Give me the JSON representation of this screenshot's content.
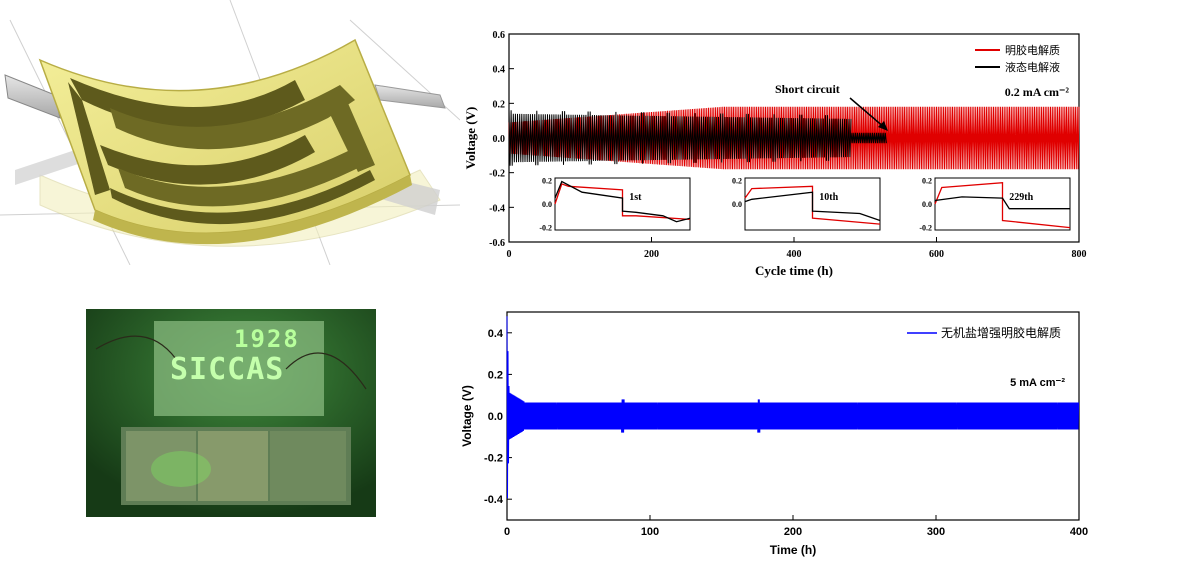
{
  "colors": {
    "red": "#e00000",
    "black": "#000000",
    "blue": "#0000ff",
    "led": "#7dff6a"
  },
  "photo": {
    "sign_line1": "1928",
    "sign_line2": "SICCAS"
  },
  "chart_data": [
    {
      "type": "line",
      "xlabel": "Cycle time (h)",
      "ylabel": "Voltage (V)",
      "xlim": [
        0,
        800
      ],
      "ylim": [
        -0.6,
        0.6
      ],
      "xticks": [
        "0",
        "200",
        "400",
        "600",
        "800"
      ],
      "yticks": [
        "0.6",
        "0.4",
        "0.2",
        "0.0",
        "-0.2",
        "-0.4",
        "-0.6"
      ],
      "legend_position": "top-right",
      "series": [
        {
          "name": "明胶电解质",
          "color": "#e00000",
          "x_end": 800,
          "amplitude": 0.18
        },
        {
          "name": "液态电解液",
          "color": "#000000",
          "x_end": 530,
          "amplitude": 0.13,
          "short_circuit_at": 480
        }
      ],
      "annotations": [
        "Short circuit",
        "0.2 mA cm⁻²"
      ],
      "insets": [
        {
          "label": "1st",
          "yticks": [
            "0.2",
            "0.0",
            "-0.2"
          ],
          "red": [
            [
              0,
              0.0
            ],
            [
              0.05,
              0.17
            ],
            [
              0.1,
              0.15
            ],
            [
              0.5,
              0.12
            ],
            [
              0.5,
              -0.1
            ],
            [
              0.6,
              -0.1
            ],
            [
              1,
              -0.13
            ]
          ],
          "black": [
            [
              0,
              0.05
            ],
            [
              0.05,
              0.19
            ],
            [
              0.2,
              0.1
            ],
            [
              0.5,
              0.05
            ],
            [
              0.5,
              -0.06
            ],
            [
              0.6,
              -0.07
            ],
            [
              0.8,
              -0.1
            ],
            [
              0.9,
              -0.15
            ],
            [
              1,
              -0.12
            ]
          ]
        },
        {
          "label": "10th",
          "yticks": [
            "0.2",
            "0.0"
          ],
          "red": [
            [
              0,
              0.05
            ],
            [
              0.05,
              0.13
            ],
            [
              0.5,
              0.15
            ],
            [
              0.5,
              -0.12
            ],
            [
              1,
              -0.17
            ]
          ],
          "black": [
            [
              0,
              0.02
            ],
            [
              0.05,
              0.04
            ],
            [
              0.5,
              0.1
            ],
            [
              0.5,
              -0.06
            ],
            [
              0.85,
              -0.08
            ],
            [
              1,
              -0.14
            ]
          ]
        },
        {
          "label": "229th",
          "yticks": [
            "0.2",
            "0.0",
            "-0.2"
          ],
          "red": [
            [
              0,
              0.0
            ],
            [
              0.05,
              0.14
            ],
            [
              0.5,
              0.18
            ],
            [
              0.5,
              -0.14
            ],
            [
              1,
              -0.2
            ]
          ],
          "black": [
            [
              0,
              0.03
            ],
            [
              0.2,
              0.06
            ],
            [
              0.5,
              0.05
            ],
            [
              0.55,
              -0.04
            ],
            [
              1,
              -0.04
            ]
          ]
        }
      ]
    },
    {
      "type": "line",
      "xlabel": "Time (h)",
      "ylabel": "Voltage (V)",
      "xlim": [
        0,
        400
      ],
      "ylim": [
        -0.5,
        0.5
      ],
      "xticks": [
        "0",
        "100",
        "200",
        "300",
        "400"
      ],
      "yticks": [
        "0.4",
        "0.2",
        "0.0",
        "-0.2",
        "-0.4"
      ],
      "legend_position": "top-right",
      "series": [
        {
          "name": "无机盐增强明胶电解质",
          "color": "#0000ff",
          "x_end": 400,
          "amplitude": 0.07,
          "initial_spike": 0.48
        }
      ],
      "annotations": [
        "5 mA cm⁻²"
      ]
    }
  ]
}
